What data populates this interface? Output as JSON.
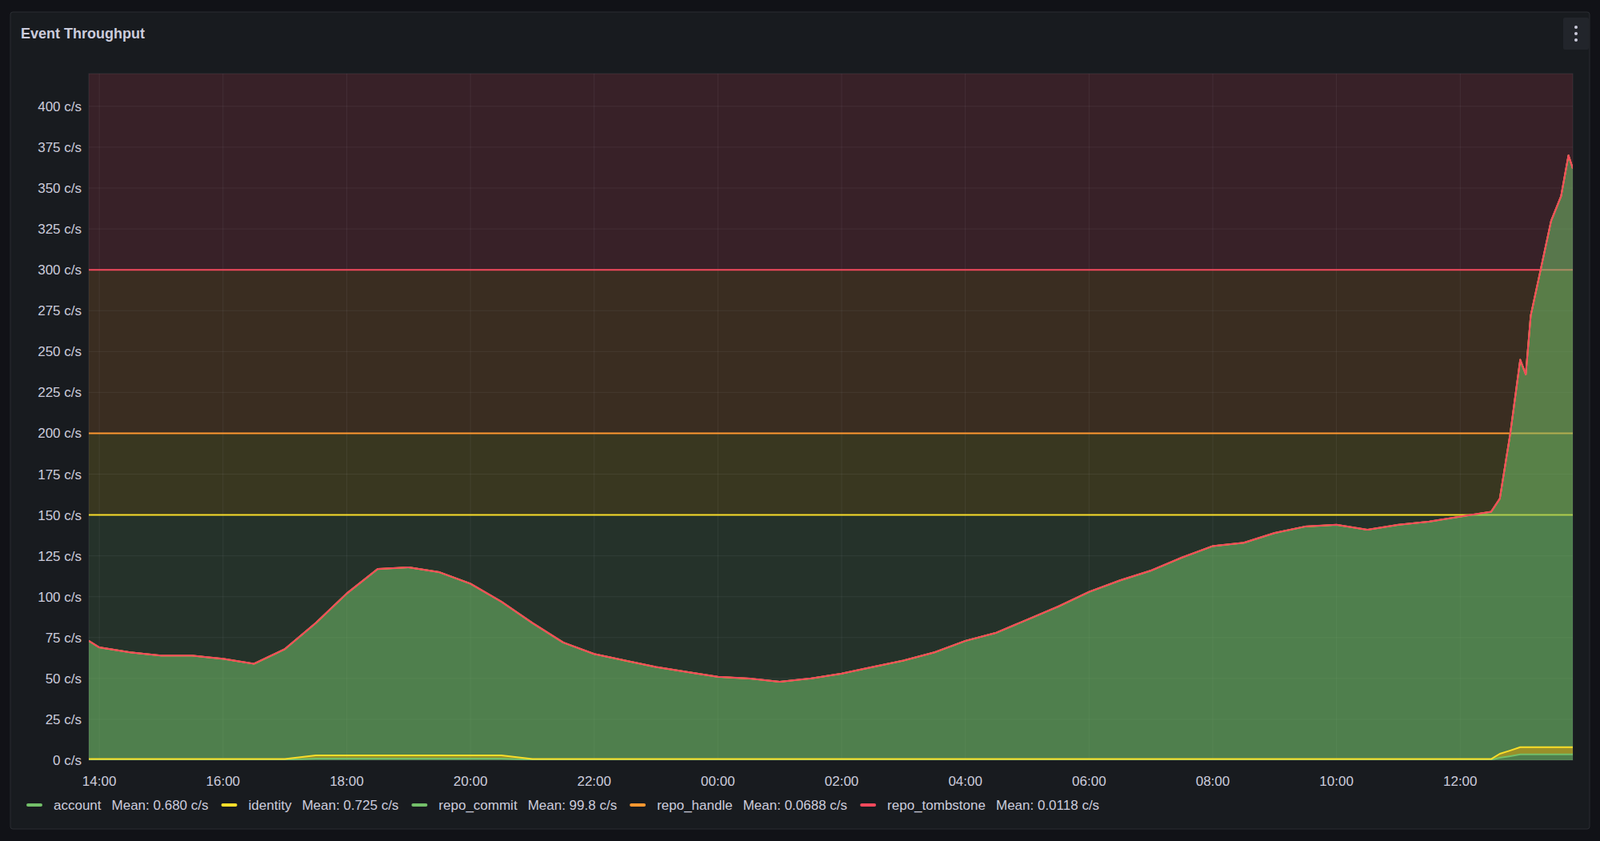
{
  "chart_data": {
    "type": "area",
    "title": "Event Throughput",
    "stacked": true,
    "grid": true,
    "legend": "bottom-left",
    "xlim": [
      13.83,
      37.82
    ],
    "xticks": [
      {
        "value": 14,
        "label": "14:00"
      },
      {
        "value": 16,
        "label": "16:00"
      },
      {
        "value": 18,
        "label": "18:00"
      },
      {
        "value": 20,
        "label": "20:00"
      },
      {
        "value": 22,
        "label": "22:00"
      },
      {
        "value": 24,
        "label": "00:00"
      },
      {
        "value": 26,
        "label": "02:00"
      },
      {
        "value": 28,
        "label": "04:00"
      },
      {
        "value": 30,
        "label": "06:00"
      },
      {
        "value": 32,
        "label": "08:00"
      },
      {
        "value": 34,
        "label": "10:00"
      },
      {
        "value": 36,
        "label": "12:00"
      }
    ],
    "ylim": [
      0,
      420
    ],
    "yticks": [
      {
        "value": 0,
        "label": "0 c/s"
      },
      {
        "value": 25,
        "label": "25 c/s"
      },
      {
        "value": 50,
        "label": "50 c/s"
      },
      {
        "value": 75,
        "label": "75 c/s"
      },
      {
        "value": 100,
        "label": "100 c/s"
      },
      {
        "value": 125,
        "label": "125 c/s"
      },
      {
        "value": 150,
        "label": "150 c/s"
      },
      {
        "value": 175,
        "label": "175 c/s"
      },
      {
        "value": 200,
        "label": "200 c/s"
      },
      {
        "value": 225,
        "label": "225 c/s"
      },
      {
        "value": 250,
        "label": "250 c/s"
      },
      {
        "value": 275,
        "label": "275 c/s"
      },
      {
        "value": 300,
        "label": "300 c/s"
      },
      {
        "value": 325,
        "label": "325 c/s"
      },
      {
        "value": 350,
        "label": "350 c/s"
      },
      {
        "value": 375,
        "label": "375 c/s"
      },
      {
        "value": 400,
        "label": "400 c/s"
      }
    ],
    "thresholds": [
      {
        "value": null,
        "color": "#73BF69"
      },
      {
        "value": 150,
        "color": "#FADE2A"
      },
      {
        "value": 200,
        "color": "#FF9830"
      },
      {
        "value": 300,
        "color": "#F2495C"
      }
    ],
    "x": [
      13.83,
      14,
      14.5,
      15,
      15.5,
      16,
      16.5,
      17,
      17.5,
      18,
      18.5,
      19,
      19.5,
      20,
      20.5,
      21,
      21.5,
      22,
      22.5,
      23,
      23.5,
      24,
      24.5,
      25,
      25.5,
      26,
      26.5,
      27,
      27.5,
      28,
      28.5,
      29,
      29.5,
      30,
      30.5,
      31,
      31.5,
      32,
      32.5,
      33,
      33.5,
      34,
      34.5,
      35,
      35.5,
      36,
      36.5,
      36.64,
      36.81,
      36.97,
      37.06,
      37.14,
      37.3,
      37.47,
      37.63,
      37.75,
      37.82
    ],
    "series": [
      {
        "name": "account",
        "color": "#73BF69",
        "mean": {
          "value": 0.68,
          "label": "Mean: 0.680 c/s"
        },
        "values": [
          0.3,
          0.3,
          0.3,
          0.3,
          0.3,
          0.3,
          0.3,
          0.3,
          1.0,
          1.0,
          1.0,
          1.0,
          1.0,
          1.0,
          1.0,
          0.3,
          0.3,
          0.3,
          0.3,
          0.3,
          0.3,
          0.3,
          0.3,
          0.3,
          0.3,
          0.3,
          0.3,
          0.3,
          0.3,
          0.3,
          0.3,
          0.3,
          0.3,
          0.3,
          0.3,
          0.3,
          0.3,
          0.3,
          0.3,
          0.3,
          0.3,
          0.3,
          0.3,
          0.3,
          0.3,
          0.3,
          0.3,
          1.5,
          2.5,
          3.5,
          3.5,
          3.5,
          3.5,
          3.5,
          3.5,
          3.5,
          3.5
        ]
      },
      {
        "name": "identity",
        "color": "#FADE2A",
        "mean": {
          "value": 0.725,
          "label": "Mean: 0.725 c/s"
        },
        "values": [
          0.42,
          0.42,
          0.42,
          0.42,
          0.42,
          0.42,
          0.42,
          0.42,
          1.92,
          1.92,
          1.92,
          1.92,
          1.92,
          1.92,
          1.92,
          0.42,
          0.42,
          0.42,
          0.42,
          0.42,
          0.42,
          0.42,
          0.42,
          0.42,
          0.42,
          0.42,
          0.42,
          0.42,
          0.42,
          0.42,
          0.42,
          0.42,
          0.42,
          0.42,
          0.42,
          0.42,
          0.42,
          0.42,
          0.42,
          0.42,
          0.42,
          0.42,
          0.42,
          0.42,
          0.42,
          0.42,
          0.42,
          2.42,
          3.42,
          4.42,
          4.42,
          4.42,
          4.42,
          4.42,
          4.42,
          4.42,
          4.42
        ]
      },
      {
        "name": "repo_commit",
        "color": "#73BF69",
        "mean": {
          "value": 99.8,
          "label": "Mean: 99.8 c/s"
        },
        "values": [
          72.2,
          68.2,
          65.2,
          63.2,
          63.2,
          61.2,
          58.2,
          67.2,
          81,
          99,
          114,
          115,
          112,
          105,
          94,
          83.2,
          71.2,
          64.2,
          60.2,
          56.2,
          53.2,
          50.2,
          49.2,
          47.2,
          49.2,
          52.2,
          56.2,
          60.2,
          65.2,
          72.2,
          77.2,
          85.2,
          93.2,
          102.2,
          109.2,
          115.2,
          123.2,
          130.2,
          132.2,
          138.2,
          142.2,
          143.2,
          140.2,
          143.2,
          145.2,
          148.2,
          151.2,
          156,
          194,
          237,
          228,
          264,
          292,
          322,
          337,
          362,
          354
        ]
      },
      {
        "name": "repo_handle",
        "color": "#FF9830",
        "mean": {
          "value": 0.0688,
          "label": "Mean: 0.0688 c/s"
        },
        "values": [
          0.07,
          0.07,
          0.07,
          0.07,
          0.07,
          0.07,
          0.07,
          0.07,
          0.07,
          0.07,
          0.07,
          0.07,
          0.07,
          0.07,
          0.07,
          0.07,
          0.07,
          0.07,
          0.07,
          0.07,
          0.07,
          0.07,
          0.07,
          0.07,
          0.07,
          0.07,
          0.07,
          0.07,
          0.07,
          0.07,
          0.07,
          0.07,
          0.07,
          0.07,
          0.07,
          0.07,
          0.07,
          0.07,
          0.07,
          0.07,
          0.07,
          0.07,
          0.07,
          0.07,
          0.07,
          0.07,
          0.07,
          0.07,
          0.07,
          0.07,
          0.07,
          0.07,
          0.07,
          0.07,
          0.07,
          0.07,
          0.07
        ]
      },
      {
        "name": "repo_tombstone",
        "color": "#F2495C",
        "mean": {
          "value": 0.0118,
          "label": "Mean: 0.0118 c/s"
        },
        "values": [
          0.01,
          0.01,
          0.01,
          0.01,
          0.01,
          0.01,
          0.01,
          0.01,
          0.01,
          0.01,
          0.01,
          0.01,
          0.01,
          0.01,
          0.01,
          0.01,
          0.01,
          0.01,
          0.01,
          0.01,
          0.01,
          0.01,
          0.01,
          0.01,
          0.01,
          0.01,
          0.01,
          0.01,
          0.01,
          0.01,
          0.01,
          0.01,
          0.01,
          0.01,
          0.01,
          0.01,
          0.01,
          0.01,
          0.01,
          0.01,
          0.01,
          0.01,
          0.01,
          0.01,
          0.01,
          0.01,
          0.01,
          0.01,
          0.01,
          0.01,
          0.01,
          0.01,
          0.01,
          0.01,
          0.01,
          0.01,
          0.01
        ]
      }
    ]
  }
}
